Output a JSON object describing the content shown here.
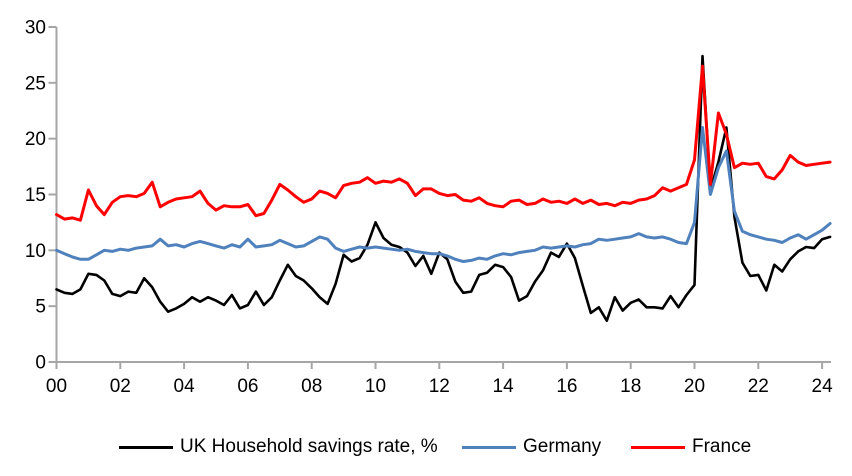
{
  "page": {
    "background": "#ffffff"
  },
  "chart_data": {
    "type": "line",
    "title": "",
    "grid": false,
    "legend_position": "bottom",
    "axis_color": "#A6A6A6",
    "label_color": "#000000",
    "x_axis": {
      "unit": "year (quarterly data)",
      "start_year": 2000,
      "step_years": 0.25,
      "range": [
        2000,
        2024.25
      ],
      "tick_interval_years": 2,
      "tick_labels": [
        "00",
        "02",
        "04",
        "06",
        "08",
        "10",
        "12",
        "14",
        "16",
        "18",
        "20",
        "22",
        "24"
      ]
    },
    "y_axis": {
      "unit": "%",
      "min": 0,
      "max": 30,
      "ticks": [
        0,
        5,
        10,
        15,
        20,
        25,
        30
      ],
      "tick_labels": [
        "0",
        "5",
        "10",
        "15",
        "20",
        "25",
        "30"
      ]
    },
    "series": [
      {
        "name": "UK Household savings rate, %",
        "color": "#000000",
        "values": [
          6.5,
          6.2,
          6.1,
          6.5,
          7.9,
          7.8,
          7.3,
          6.1,
          5.9,
          6.3,
          6.2,
          7.5,
          6.7,
          5.4,
          4.5,
          4.8,
          5.2,
          5.8,
          5.4,
          5.8,
          5.5,
          5.1,
          6.0,
          4.8,
          5.1,
          6.3,
          5.1,
          5.8,
          7.3,
          8.7,
          7.7,
          7.3,
          6.6,
          5.8,
          5.2,
          7.0,
          9.6,
          9.0,
          9.3,
          10.5,
          12.5,
          11.1,
          10.5,
          10.3,
          9.8,
          8.6,
          9.5,
          7.9,
          9.8,
          9.2,
          7.2,
          6.2,
          6.3,
          7.8,
          8.0,
          8.7,
          8.5,
          7.6,
          5.5,
          5.9,
          7.2,
          8.2,
          9.8,
          9.4,
          10.6,
          9.3,
          6.8,
          4.4,
          4.9,
          3.7,
          5.8,
          4.6,
          5.3,
          5.6,
          4.9,
          4.9,
          4.8,
          5.9,
          4.9,
          6.0,
          6.9,
          27.4,
          15.4,
          17.9,
          21.0,
          13.0,
          8.9,
          7.7,
          7.8,
          6.4,
          8.7,
          8.1,
          9.2,
          9.9,
          10.3,
          10.2,
          11.0,
          11.2
        ]
      },
      {
        "name": "Germany",
        "color": "#4F81BD",
        "values": [
          10.0,
          9.7,
          9.4,
          9.2,
          9.2,
          9.6,
          10.0,
          9.9,
          10.1,
          10.0,
          10.2,
          10.3,
          10.4,
          11.0,
          10.4,
          10.5,
          10.3,
          10.6,
          10.8,
          10.6,
          10.4,
          10.2,
          10.5,
          10.3,
          11.0,
          10.3,
          10.4,
          10.5,
          10.9,
          10.6,
          10.3,
          10.4,
          10.8,
          11.2,
          11.0,
          10.2,
          9.9,
          10.1,
          10.3,
          10.2,
          10.3,
          10.2,
          10.1,
          10.0,
          10.1,
          9.9,
          9.8,
          9.7,
          9.7,
          9.5,
          9.2,
          9.0,
          9.1,
          9.3,
          9.2,
          9.5,
          9.7,
          9.6,
          9.8,
          9.9,
          10.0,
          10.3,
          10.2,
          10.3,
          10.4,
          10.3,
          10.5,
          10.6,
          11.0,
          10.9,
          11.0,
          11.1,
          11.2,
          11.5,
          11.2,
          11.1,
          11.2,
          11.0,
          10.7,
          10.6,
          12.5,
          21.0,
          15.0,
          17.4,
          18.9,
          13.5,
          11.7,
          11.4,
          11.2,
          11.0,
          10.9,
          10.7,
          11.1,
          11.4,
          11.0,
          11.4,
          11.8,
          12.4
        ]
      },
      {
        "name": "France",
        "color": "#FF0000",
        "values": [
          13.2,
          12.8,
          12.9,
          12.7,
          15.4,
          14.0,
          13.2,
          14.3,
          14.8,
          14.9,
          14.8,
          15.1,
          16.1,
          13.9,
          14.3,
          14.6,
          14.7,
          14.8,
          15.3,
          14.2,
          13.6,
          14.0,
          13.9,
          13.9,
          14.1,
          13.1,
          13.3,
          14.5,
          15.9,
          15.4,
          14.8,
          14.3,
          14.6,
          15.3,
          15.1,
          14.7,
          15.8,
          16.0,
          16.1,
          16.5,
          16.0,
          16.2,
          16.1,
          16.4,
          16.0,
          14.9,
          15.5,
          15.5,
          15.1,
          14.9,
          15.0,
          14.5,
          14.4,
          14.7,
          14.2,
          14.0,
          13.9,
          14.4,
          14.5,
          14.1,
          14.2,
          14.6,
          14.3,
          14.4,
          14.2,
          14.6,
          14.2,
          14.5,
          14.1,
          14.2,
          14.0,
          14.3,
          14.2,
          14.5,
          14.6,
          14.9,
          15.6,
          15.3,
          15.6,
          15.9,
          18.1,
          26.5,
          15.9,
          22.3,
          20.4,
          17.4,
          17.8,
          17.7,
          17.8,
          16.6,
          16.4,
          17.2,
          18.5,
          17.9,
          17.6,
          17.7,
          17.8,
          17.9
        ]
      }
    ]
  }
}
